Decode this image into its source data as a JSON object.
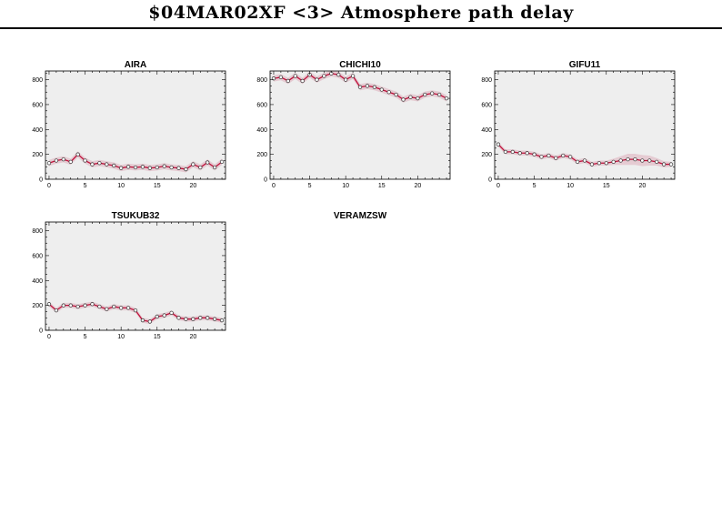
{
  "page": {
    "title": "$04MAR02XF <3>  Atmosphere path delay"
  },
  "colors": {
    "line": "#c0103a",
    "band": "#e3c4cc",
    "background": "#eeeeee",
    "marker_fill": "#ffffff"
  },
  "chart_data": [
    {
      "type": "line",
      "title": "AIRA",
      "xlim": [
        -0.5,
        24.5
      ],
      "ylim": [
        0,
        870
      ],
      "xticks": [
        0,
        5,
        10,
        15,
        20
      ],
      "yticks": [
        0,
        200,
        400,
        600,
        800
      ],
      "x": [
        0,
        1,
        2,
        3,
        4,
        5,
        6,
        7,
        8,
        9,
        10,
        11,
        12,
        13,
        14,
        15,
        16,
        17,
        18,
        19,
        20,
        21,
        22,
        23,
        24
      ],
      "y": [
        130,
        150,
        160,
        140,
        200,
        150,
        120,
        130,
        120,
        110,
        90,
        100,
        95,
        100,
        90,
        95,
        105,
        95,
        90,
        80,
        120,
        95,
        135,
        95,
        140
      ],
      "err": 25
    },
    {
      "type": "line",
      "title": "CHICHI10",
      "xlim": [
        -0.5,
        24.5
      ],
      "ylim": [
        0,
        870
      ],
      "xticks": [
        0,
        5,
        10,
        15,
        20
      ],
      "yticks": [
        0,
        200,
        400,
        600,
        800
      ],
      "x": [
        0,
        1,
        2,
        3,
        4,
        5,
        6,
        7,
        8,
        9,
        10,
        11,
        12,
        13,
        14,
        15,
        16,
        17,
        18,
        19,
        20,
        21,
        22,
        23,
        24
      ],
      "y": [
        810,
        820,
        790,
        830,
        790,
        840,
        800,
        830,
        850,
        840,
        800,
        830,
        740,
        750,
        740,
        720,
        700,
        680,
        640,
        660,
        650,
        680,
        690,
        680,
        650
      ],
      "err": 25
    },
    {
      "type": "line",
      "title": "GIFU11",
      "xlim": [
        -0.5,
        24.5
      ],
      "ylim": [
        0,
        870
      ],
      "xticks": [
        0,
        5,
        10,
        15,
        20
      ],
      "yticks": [
        0,
        200,
        400,
        600,
        800
      ],
      "x": [
        0,
        1,
        2,
        3,
        4,
        5,
        6,
        7,
        8,
        9,
        10,
        11,
        12,
        13,
        14,
        15,
        16,
        17,
        18,
        19,
        20,
        21,
        22,
        23,
        24
      ],
      "y": [
        280,
        220,
        220,
        210,
        210,
        200,
        180,
        190,
        170,
        190,
        180,
        140,
        150,
        120,
        130,
        130,
        140,
        150,
        160,
        160,
        150,
        150,
        140,
        120,
        120
      ],
      "err": [
        20,
        20,
        20,
        20,
        20,
        20,
        20,
        20,
        20,
        20,
        20,
        20,
        20,
        20,
        20,
        20,
        25,
        35,
        45,
        45,
        45,
        40,
        30,
        25,
        20
      ]
    },
    {
      "type": "line",
      "title": "TSUKUB32",
      "xlim": [
        -0.5,
        24.5
      ],
      "ylim": [
        0,
        870
      ],
      "xticks": [
        0,
        5,
        10,
        15,
        20
      ],
      "yticks": [
        0,
        200,
        400,
        600,
        800
      ],
      "x": [
        0,
        1,
        2,
        3,
        4,
        5,
        6,
        7,
        8,
        9,
        10,
        11,
        12,
        13,
        14,
        15,
        16,
        17,
        18,
        19,
        20,
        21,
        22,
        23,
        24
      ],
      "y": [
        210,
        160,
        200,
        200,
        190,
        200,
        210,
        190,
        170,
        190,
        180,
        180,
        160,
        80,
        70,
        110,
        120,
        140,
        100,
        90,
        90,
        100,
        100,
        90,
        80
      ],
      "err": 20
    },
    {
      "type": "line",
      "title": "VERAMZSW",
      "empty": true
    }
  ]
}
